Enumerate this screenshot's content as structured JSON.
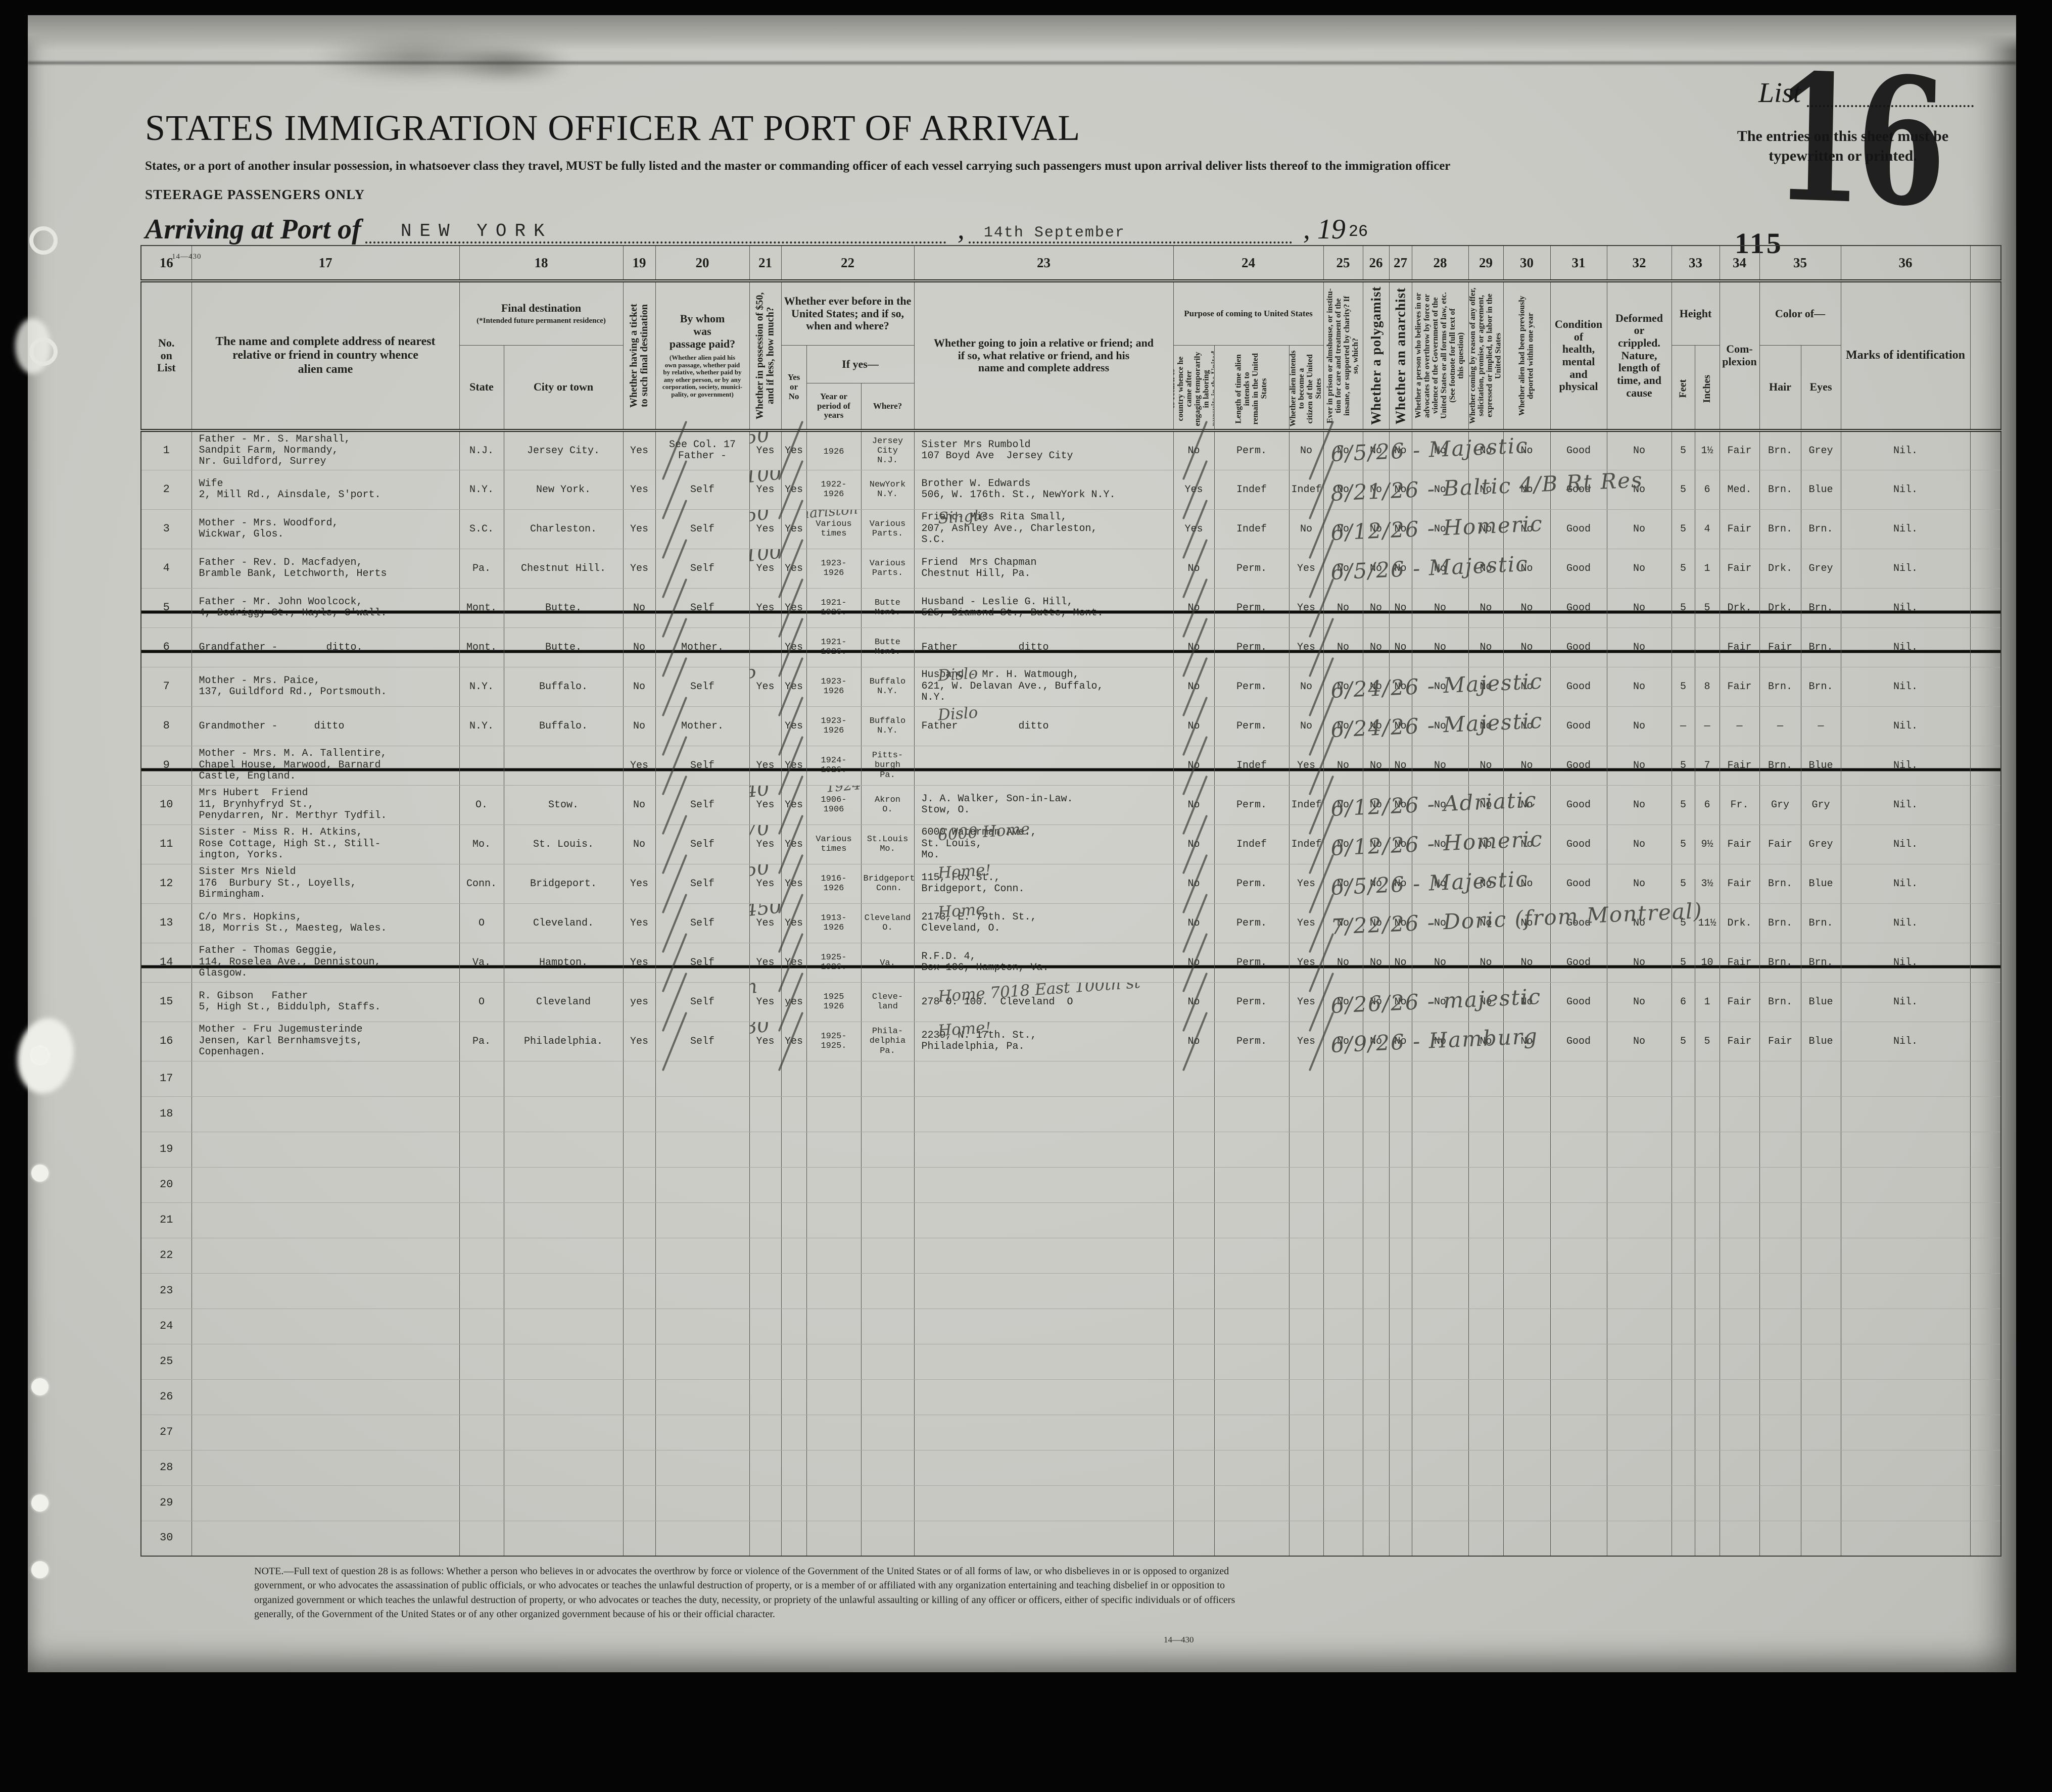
{
  "page": {
    "title": "STATES IMMIGRATION OFFICER AT PORT OF ARRIVAL",
    "subtitle": "States, or a port of another insular possession, in whatsoever class they travel, MUST be fully listed and the master or commanding officer of each vessel carrying such passengers must upon arrival deliver lists thereof to the immigration officer",
    "steerage": "STEERAGE PASSENGERS ONLY",
    "arriving_label": "Arriving at Port of",
    "port": "NEW YORK",
    "comma": ",",
    "date": "14th September",
    "year_printed": ", 19",
    "year_typed": "26",
    "list_label": "List",
    "list_number": "16",
    "typed_note": "The entries on this sheet must be typewritten or printed.",
    "stamp_number": "115",
    "form_number": "14—430",
    "footnote": "NOTE.—Full text of question 28 is as follows: Whether a person who believes in or advocates the overthrow by force or violence of the Government of the United States or of all forms of law, or who disbelieves in or is opposed to organized government, or who advocates the assassination of public officials, or who advocates or teaches the unlawful destruction of property, or is a member of or affiliated with any organization entertaining and teaching disbelief in or opposition to organized government or which teaches the unlawful destruction of property, or who advocates or teaches the duty, necessity, or propriety of the unlawful assaulting or killing of any officer or officers, either of specific individuals or of officers generally, of the Government of the United States or of any other organized government because of his or their official character.",
    "footnote_form": "14—430"
  },
  "header": {
    "numbers": [
      "16",
      "17",
      "18",
      "19",
      "20",
      "21",
      "22",
      "23",
      "24",
      "25",
      "26",
      "27",
      "28",
      "29",
      "30",
      "31",
      "32",
      "33",
      "34",
      "35",
      "36"
    ],
    "col16": "No.\non\nList",
    "col17": "The name and complete address of nearest\nrelative or friend in country whence\nalien came",
    "col18": {
      "title": "Final destination",
      "note": "(*Intended future permanent residence)",
      "state": "State",
      "city": "City or town"
    },
    "col19": "Whether having a ticket\nto such final destination",
    "col20": {
      "title": "By whom\nwas\npassage paid?",
      "note": "(Whether alien paid his\nown passage, whether paid\nby relative, whether paid by\nany other person, or by any\ncorporation, society, munici-\npality, or government)"
    },
    "col21": "Whether in possession of $50,\nand if less, how much?",
    "col22": {
      "title": "Whether ever before in the\nUnited States; and if so,\nwhen and where?",
      "yesno": "Yes\nor\nNo",
      "ifyes": "If yes—",
      "year": "Year or\nperiod of\nyears",
      "where": "Where?"
    },
    "col23": "Whether going to join a relative or friend; and\nif so, what relative or friend, and his\nname and complete address",
    "col24": {
      "title": "Purpose of coming to United States",
      "a": "Whether alien intends to return to\ncountry whence he came after\nengaging temporarily in laboring\npursuits in the United States",
      "b": "Length of time alien intends to\nremain in the United States",
      "c": "Whether alien intends to become a\ncitizen of the United States"
    },
    "col25": "Ever in prison or almshouse, or institu-\ntion for care and treatment of the\ninsane, or supported by charity? If\nso, which?",
    "col26": "Whether a polygamist",
    "col27": "Whether an anarchist",
    "col28": "Whether a person who believes in or\nadvocates the overthrow by force or\nviolence of the Government of the\nUnited States or all forms of law, etc.\n(See footnote for full text of\nthis question)",
    "col29": "Whether coming by reason of any offer,\nsolicitation, promise, or agreement,\nexpressed or implied, to labor in the\nUnited States",
    "col30": "Whether alien had been previously\ndeported within one year",
    "col31": "Condition\nof\nhealth,\nmental\nand\nphysical",
    "col32": "Deformed or\ncrippled.\nNature,\nlength of\ntime, and\ncause",
    "col33": {
      "title": "Height",
      "feet": "Feet",
      "inches": "Inches"
    },
    "col34": "Com-\nplexion",
    "col35": {
      "title": "Color of—",
      "hair": "Hair",
      "eyes": "Eyes"
    },
    "col36": "Marks of identification"
  },
  "rows": [
    {
      "no": "1",
      "relative": "Father - Mr. S. Marshall,\nSandpit Farm, Normandy,\nNr. Guildford, Surrey",
      "state": "N.J.",
      "city": "Jersey City.",
      "ticket": "Yes",
      "paid": "See Col. 17\nFather -",
      "poss": "Yes",
      "poss_hw": "50",
      "byes": "Yes",
      "year": "1926",
      "where": "Jersey\nCity\nN.J.",
      "join": "Sister Mrs Rumbold\n107 Boyd Ave  Jersey City",
      "ret": "No",
      "stay": "Perm.",
      "cit": "No",
      "prison": "No",
      "poly": "No",
      "anar": "No",
      "over": "No",
      "labor": "No",
      "dep": "No",
      "health": "Good",
      "deform": "No",
      "feet": "5",
      "inches": "1½",
      "compl": "Fair",
      "hair": "Brn.",
      "eyes": "Grey",
      "marks": "Nil.",
      "hw": "6/5/26 - Majestic",
      "struck": false
    },
    {
      "no": "2",
      "relative": "Wife\n2, Mill Rd., Ainsdale, S'port.",
      "state": "N.Y.",
      "city": "New York.",
      "ticket": "Yes",
      "paid": "Self",
      "poss": "Yes",
      "poss_hw": "100",
      "byes": "Yes",
      "year": "1922-\n1926",
      "where": "NewYork\nN.Y.",
      "join": "Brother W. Edwards\n506, W. 176th. St., NewYork N.Y.",
      "ret": "Yes",
      "stay": "Indef",
      "cit": "Indef",
      "prison": "No",
      "poly": "No",
      "anar": "No",
      "over": "No",
      "labor": "No",
      "dep": "No",
      "health": "Good",
      "deform": "No",
      "feet": "5",
      "inches": "6",
      "compl": "Med.",
      "hair": "Brn.",
      "eyes": "Blue",
      "marks": "Nil.",
      "hw": "8/21/26 - Baltic  4/B Rt Res",
      "struck": false
    },
    {
      "no": "3",
      "relative": "Mother - Mrs. Woodford,\nWickwar, Glos.",
      "state": "S.C.",
      "city": "Charleston.",
      "ticket": "Yes",
      "paid": "Self",
      "poss": "Yes",
      "poss_hw": "50",
      "byes": "Yes",
      "year": "Various\ntimes",
      "year_hw": "Charlston 1924-26",
      "where": "Various\nParts.",
      "join": "Friend- Miss Rita Small,\n207, Ashley Ave., Charleston,\nS.C.",
      "join_hw": "Single",
      "ret": "Yes",
      "stay": "Indef",
      "cit": "No",
      "prison": "No",
      "poly": "No",
      "anar": "No",
      "over": "No",
      "labor": "No",
      "dep": "No",
      "health": "Good",
      "deform": "No",
      "feet": "5",
      "inches": "4",
      "compl": "Fair",
      "hair": "Brn.",
      "eyes": "Brn.",
      "marks": "Nil.",
      "hw": "6/12/26 - Homeric",
      "struck": false
    },
    {
      "no": "4",
      "relative": "Father - Rev. D. Macfadyen,\nBramble Bank, Letchworth, Herts",
      "state": "Pa.",
      "city": "Chestnut Hill.",
      "ticket": "Yes",
      "paid": "Self",
      "poss": "Yes",
      "poss_hw": "100",
      "byes": "Yes",
      "year": "1923-\n1926",
      "where": "Various\nParts.",
      "join": "Friend  Mrs Chapman\nChestnut Hill, Pa.",
      "ret": "No",
      "stay": "Perm.",
      "cit": "Yes",
      "prison": "No",
      "poly": "No",
      "anar": "No",
      "over": "No",
      "labor": "No",
      "dep": "No",
      "health": "Good",
      "deform": "No",
      "feet": "5",
      "inches": "1",
      "compl": "Fair",
      "hair": "Drk.",
      "eyes": "Grey",
      "marks": "Nil.",
      "hw": "6/5/26 - Majestic",
      "struck": false
    },
    {
      "no": "5",
      "relative": "Father - Mr. John Woolcock,\n4, Bodriggy St., Hayle, C'wall.",
      "state": "Mont.",
      "city": "Butte.",
      "ticket": "No",
      "paid": "Self",
      "poss": "Yes",
      "byes": "Yes",
      "year": "1921-\n1926.",
      "where": "Butte\nMont.",
      "join": "Husband - Leslie G. Hill,\n525, Diamond St., Butte, Mont.",
      "ret": "No",
      "stay": "Perm.",
      "cit": "Yes",
      "prison": "No",
      "poly": "No",
      "anar": "No",
      "over": "No",
      "labor": "No",
      "dep": "No",
      "health": "Good",
      "deform": "No",
      "feet": "5",
      "inches": "5",
      "compl": "Drk.",
      "hair": "Drk.",
      "eyes": "Brn.",
      "marks": "Nil.",
      "struck": true
    },
    {
      "no": "6",
      "relative": "Grandfather -        ditto.",
      "state": "Mont.",
      "city": "Butte.",
      "ticket": "No",
      "paid": "Mother.",
      "byes": "Yes",
      "year": "1921-\n1926.",
      "where": "Butte\nMont.",
      "join": "Father          ditto",
      "ret": "No",
      "stay": "Perm.",
      "cit": "Yes",
      "prison": "No",
      "poly": "No",
      "anar": "No",
      "over": "No",
      "labor": "No",
      "dep": "No",
      "health": "Good",
      "deform": "No",
      "compl": "Fair",
      "hair": "Fair",
      "eyes": "Brn.",
      "marks": "Nil.",
      "struck": true
    },
    {
      "no": "7",
      "relative": "Mother - Mrs. Paice,\n137, Guildford Rd., Portsmouth.",
      "state": "N.Y.",
      "city": "Buffalo.",
      "ticket": "No",
      "paid": "Self",
      "poss": "Yes",
      "poss_hw": "5",
      "byes": "Yes",
      "year": "1923-\n1926",
      "where": "Buffalo\nN.Y.",
      "join": "Husband - Mr. H. Watmough,\n621, W. Delavan Ave., Buffalo,\nN.Y.",
      "join_hw": "Dislo",
      "ret": "No",
      "stay": "Perm.",
      "cit": "No",
      "prison": "No",
      "poly": "No",
      "anar": "No",
      "over": "No",
      "labor": "No",
      "dep": "No",
      "health": "Good",
      "deform": "No",
      "feet": "5",
      "inches": "8",
      "compl": "Fair",
      "hair": "Brn.",
      "eyes": "Brn.",
      "marks": "Nil.",
      "hw": "6/24/26 - Majestic",
      "struck": false
    },
    {
      "no": "8",
      "relative": "Grandmother -      ditto",
      "state": "N.Y.",
      "city": "Buffalo.",
      "ticket": "No",
      "paid": "Mother.",
      "byes": "Yes",
      "year": "1923-\n1926",
      "where": "Buffalo\nN.Y.",
      "join": "Father          ditto",
      "join_hw": "Dislo",
      "ret": "No",
      "stay": "Perm.",
      "cit": "No",
      "prison": "No",
      "poly": "No",
      "anar": "No",
      "over": "No",
      "labor": "No",
      "dep": "No",
      "health": "Good",
      "deform": "No",
      "feet": "—",
      "inches": "—",
      "compl": "—",
      "hair": "—",
      "eyes": "—",
      "marks": "Nil.",
      "hw": "6/24/26 - Majestic",
      "struck": false
    },
    {
      "no": "9",
      "relative": "Mother - Mrs. M. A. Tallentire,\nChapel House, Marwood, Barnard\nCastle, England.",
      "ticket": "Yes",
      "paid": "Self",
      "poss": "Yes",
      "byes": "Yes",
      "year": "1924-\n1926.",
      "where": "Pitts-\nburgh\nPa.",
      "ret": "No",
      "stay": "Indef",
      "cit": "Yes",
      "prison": "No",
      "poly": "No",
      "anar": "No",
      "over": "No",
      "labor": "No",
      "dep": "No",
      "health": "Good",
      "deform": "No",
      "feet": "5",
      "inches": "7",
      "compl": "Fair",
      "hair": "Brn.",
      "eyes": "Blue",
      "marks": "Nil.",
      "struck": true
    },
    {
      "no": "10",
      "relative": "Mrs Hubert  Friend\n11, Brynhyfryd St.,\nPenydarren, Nr. Merthyr Tydfil.",
      "state": "O.",
      "city": "Stow.",
      "ticket": "No",
      "paid": "Self",
      "poss": "Yes",
      "poss_hw": "40",
      "byes": "Yes",
      "year": "1906-\n1906",
      "year_hw": "1924-26",
      "where": "Akron\nO.",
      "join": "J. A. Walker, Son-in-Law.\nStow, O.",
      "ret": "No",
      "stay": "Perm.",
      "cit": "Indef",
      "prison": "No",
      "poly": "No",
      "anar": "No",
      "over": "No",
      "labor": "No",
      "dep": "No",
      "health": "Good",
      "deform": "No",
      "feet": "5",
      "inches": "6",
      "compl": "Fr.",
      "hair": "Gry",
      "eyes": "Gry",
      "marks": "Nil.",
      "hw": "6/12/26 - Adriatic",
      "struck": false
    },
    {
      "no": "11",
      "relative": "Sister - Miss R. H. Atkins,\nRose Cottage, High St., Still-\nington, Yorks.",
      "state": "Mo.",
      "city": "St. Louis.",
      "ticket": "No",
      "paid": "Self",
      "poss": "Yes",
      "poss_hw": "70",
      "byes": "Yes",
      "year": "Various\ntimes",
      "where": "St.Louis\nMo.",
      "join": "6000 Waterman Ave.,\nSt. Louis,\nMo.",
      "join_hw": "6000  Home",
      "ret": "No",
      "stay": "Indef",
      "cit": "Indef",
      "prison": "No",
      "poly": "No",
      "anar": "No",
      "over": "No",
      "labor": "No",
      "dep": "No",
      "health": "Good",
      "deform": "No",
      "feet": "5",
      "inches": "9½",
      "compl": "Fair",
      "hair": "Fair",
      "eyes": "Grey",
      "marks": "Nil.",
      "hw": "6/12/26 - Homeric",
      "struck": false
    },
    {
      "no": "12",
      "relative": "Sister Mrs Nield\n176  Burbury St., Loyells,\nBirmingham.",
      "state": "Conn.",
      "city": "Bridgeport.",
      "ticket": "Yes",
      "paid": "Self",
      "poss": "Yes",
      "poss_hw": "50",
      "byes": "Yes",
      "year": "1916-\n1926",
      "where": "Bridgeport\nConn.",
      "join": "115, Fox St.,\nBridgeport, Conn.",
      "join_hw": "Home!",
      "ret": "No",
      "stay": "Perm.",
      "cit": "Yes",
      "prison": "No",
      "poly": "No",
      "anar": "No",
      "over": "No",
      "labor": "No",
      "dep": "No",
      "health": "Good",
      "deform": "No",
      "feet": "5",
      "inches": "3½",
      "compl": "Fair",
      "hair": "Brn.",
      "eyes": "Blue",
      "marks": "Nil.",
      "hw": "6/5/26 - Majestic",
      "struck": false
    },
    {
      "no": "13",
      "relative": "C/o Mrs. Hopkins,\n18, Morris St., Maesteg, Wales.",
      "state": "O",
      "city": "Cleveland.",
      "ticket": "Yes",
      "paid": "Self",
      "poss": "Yes",
      "poss_hw": "450",
      "byes": "Yes",
      "year": "1913-\n1926",
      "where": "Cleveland\nO.",
      "join": "2173, E. 79th. St.,\nCleveland, O.",
      "join_hw": "Home",
      "ret": "No",
      "stay": "Perm.",
      "cit": "Yes",
      "prison": "No",
      "poly": "No",
      "anar": "No",
      "over": "No",
      "labor": "No",
      "dep": "No",
      "health": "Good",
      "deform": "No",
      "feet": "5",
      "inches": "11½",
      "compl": "Drk.",
      "hair": "Brn.",
      "eyes": "Brn.",
      "marks": "Nil.",
      "hw": "7/22/26 - Doric (from Montreal)",
      "struck": false
    },
    {
      "no": "14",
      "relative": "Father - Thomas Geggie,\n114, Roselea Ave., Dennistoun,\nGlasgow.",
      "state": "Va.",
      "city": "Hampton.",
      "ticket": "Yes",
      "paid": "Self",
      "poss": "Yes",
      "byes": "Yes",
      "year": "1925-\n1926.",
      "where": "Va.",
      "join": "R.F.D. 4,\nBox 106, Hampton, Va.",
      "ret": "No",
      "stay": "Perm.",
      "cit": "Yes",
      "prison": "No",
      "poly": "No",
      "anar": "No",
      "over": "No",
      "labor": "No",
      "dep": "No",
      "health": "Good",
      "deform": "No",
      "feet": "5",
      "inches": "10",
      "compl": "Fair",
      "hair": "Brn.",
      "eyes": "Brn.",
      "marks": "Nil.",
      "struck": true
    },
    {
      "no": "15",
      "relative": "R. Gibson   Father\n5, High St., Biddulph, Staffs.",
      "state": "O",
      "city": "Cleveland",
      "ticket": "yes",
      "paid": "Self",
      "poss": "Yes",
      "poss_hw": "n",
      "byes": "yes",
      "year": "1925\n1926",
      "where": "Cleve-\nland",
      "join": "278 O. 100.  Cleveland  O",
      "join_hw": "Home  7018 East 100th st",
      "ret": "No",
      "stay": "Perm.",
      "cit": "Yes",
      "prison": "No",
      "poly": "No",
      "anar": "No",
      "over": "No",
      "labor": "No",
      "dep": "No",
      "health": "Good",
      "deform": "No",
      "feet": "6",
      "inches": "1",
      "compl": "Fair",
      "hair": "Brn.",
      "eyes": "Blue",
      "marks": "Nil.",
      "hw": "6/26/26 - majestic",
      "struck": false
    },
    {
      "no": "16",
      "relative": "Mother - Fru Jugemusterinde\nJensen, Karl Bernhamsvejts,\nCopenhagen.",
      "state": "Pa.",
      "city": "Philadelphia.",
      "ticket": "Yes",
      "paid": "Self",
      "poss": "Yes",
      "poss_hw": "30",
      "byes": "Yes",
      "year": "1925-\n1925.",
      "where": "Phila-\ndelphia\nPa.",
      "join": "2239, N. 17th. St.,\nPhiladelphia, Pa.",
      "join_hw": "Home!",
      "ret": "No",
      "stay": "Perm.",
      "cit": "Yes",
      "prison": "No",
      "poly": "No",
      "anar": "No",
      "over": "No",
      "labor": "No",
      "dep": "No",
      "health": "Good",
      "deform": "No",
      "feet": "5",
      "inches": "5",
      "compl": "Fair",
      "hair": "Fair",
      "eyes": "Blue",
      "marks": "Nil.",
      "hw": "6/9/26 - Hamburg",
      "struck": false
    },
    {
      "no": "17"
    },
    {
      "no": "18"
    },
    {
      "no": "19"
    },
    {
      "no": "20"
    },
    {
      "no": "21"
    },
    {
      "no": "22"
    },
    {
      "no": "23"
    },
    {
      "no": "24"
    },
    {
      "no": "25"
    },
    {
      "no": "26"
    },
    {
      "no": "27"
    },
    {
      "no": "28"
    },
    {
      "no": "29"
    },
    {
      "no": "30"
    }
  ]
}
